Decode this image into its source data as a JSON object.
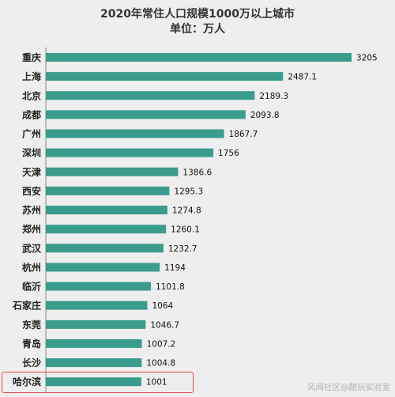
{
  "colors": {
    "bar": "#3a9c8d",
    "background": "#eeeeee",
    "highlight": "#e0494a",
    "axis": "#888888"
  },
  "highlight_category": "哈尔滨",
  "watermark": "风闻社区@酷玩实验室",
  "chart_data": {
    "type": "bar",
    "orientation": "horizontal",
    "title": "2020年常住人口规模1000万以上城市",
    "subtitle": "单位：万人",
    "categories": [
      "重庆",
      "上海",
      "北京",
      "成都",
      "广州",
      "深圳",
      "天津",
      "西安",
      "苏州",
      "郑州",
      "武汉",
      "杭州",
      "临沂",
      "石家庄",
      "东莞",
      "青岛",
      "长沙",
      "哈尔滨"
    ],
    "values": [
      3205,
      2487.1,
      2189.3,
      2093.8,
      1867.7,
      1756,
      1386.6,
      1295.3,
      1274.8,
      1260.1,
      1232.7,
      1194,
      1101.8,
      1064,
      1046.7,
      1007.2,
      1004.8,
      1001
    ],
    "value_labels": [
      "3205",
      "2487.1",
      "2189.3",
      "2093.8",
      "1867.7",
      "1756",
      "1386.6",
      "1295.3",
      "1274.8",
      "1260.1",
      "1232.7",
      "1194",
      "1101.8",
      "1064",
      "1046.7",
      "1007.2",
      "1004.8",
      "1001"
    ],
    "xlim": [
      0,
      3205
    ],
    "grid": false,
    "legend": "none"
  }
}
